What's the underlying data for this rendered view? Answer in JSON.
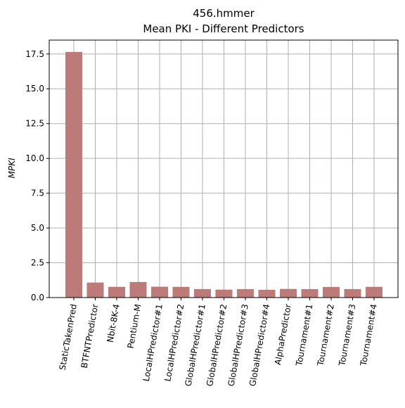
{
  "chart_data": {
    "type": "bar",
    "title": "456.hmmer",
    "subtitle": "Mean PKI - Different Predictors",
    "xlabel": "",
    "ylabel": "MPKI",
    "categories": [
      "StaticTakenPred",
      "BTFNTPredictor",
      "Nbit-8K-4",
      "Pentium-M",
      "LocalHPredictor#1",
      "LocalHPredictor#2",
      "GlobalHPredictor#1",
      "GlobalHPredictor#2",
      "GlobalHPredictor#3",
      "GlobalHPredictor#4",
      "AlphaPredictor",
      "Tournament#1",
      "Tournament#2",
      "Tournament#3",
      "Tournament#4"
    ],
    "values": [
      17.65,
      1.08,
      0.77,
      1.12,
      0.78,
      0.77,
      0.61,
      0.57,
      0.61,
      0.56,
      0.62,
      0.61,
      0.76,
      0.61,
      0.77
    ],
    "ylim": [
      0,
      18.5
    ],
    "yticks": [
      "0.0",
      "2.5",
      "5.0",
      "7.5",
      "10.0",
      "12.5",
      "15.0",
      "17.5"
    ],
    "grid": true,
    "bar_color": "#bc7a78",
    "grid_color": "#b0b0b0"
  }
}
